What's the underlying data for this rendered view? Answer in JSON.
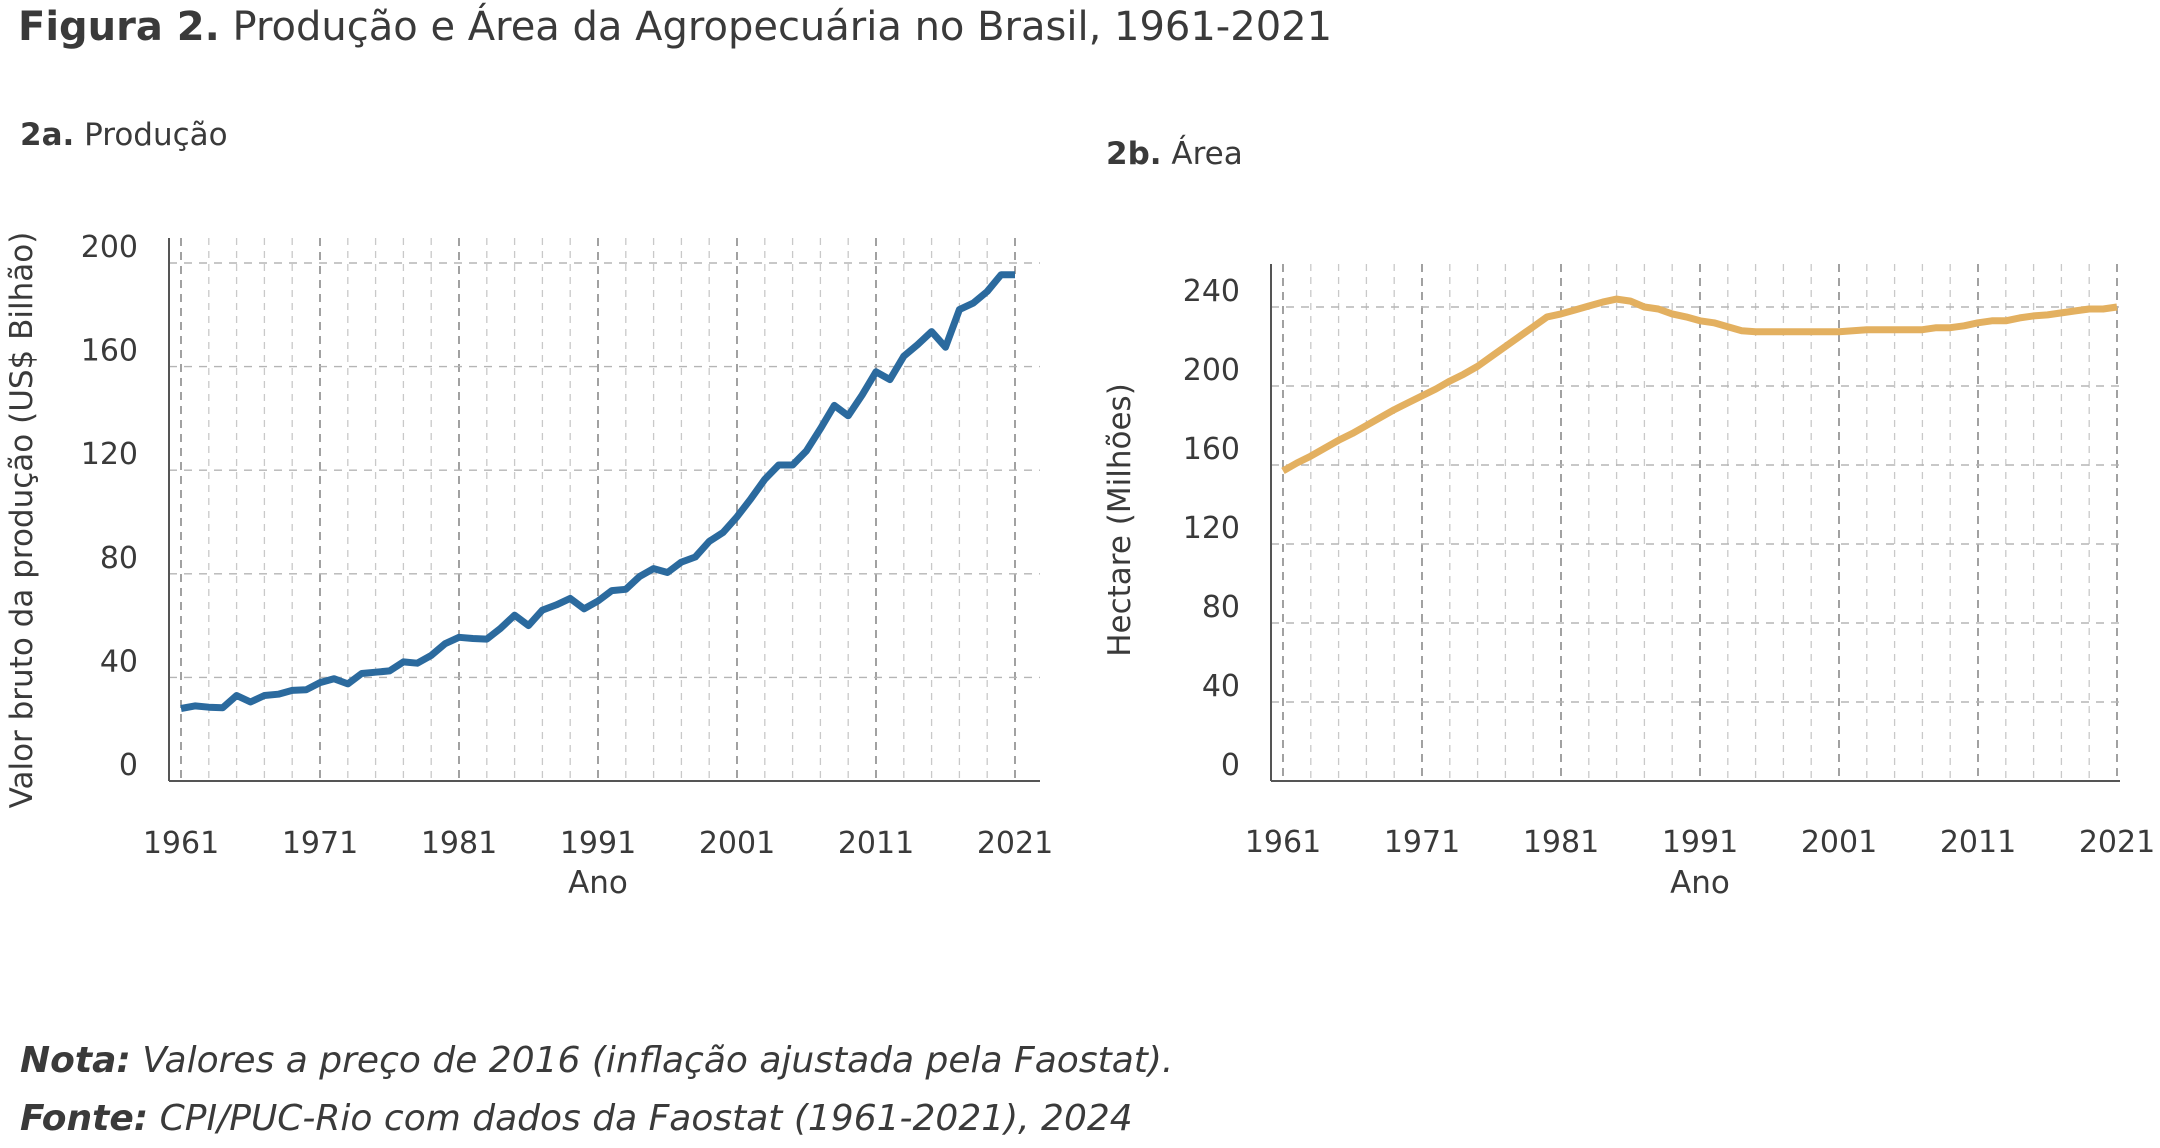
{
  "figure": {
    "title_bold": "Figura 2.",
    "title_rest": "Produção e Área da Agropecuária no Brasil, 1961-2021",
    "note_label": "Nota:",
    "note_text": "Valores a preço de 2016 (inflação ajustada pela Faostat).",
    "source_label": "Fonte:",
    "source_text": "CPI/PUC-Rio com dados da Faostat (1961-2021), 2024"
  },
  "chart_data": [
    {
      "id": "2a",
      "type": "line",
      "panel_bold": "2a.",
      "panel_title": "Produção",
      "xlabel": "Ano",
      "ylabel": "Valor bruto da produção (US$ Bilhão)",
      "xlim": [
        1961,
        2021
      ],
      "ylim": [
        0,
        200
      ],
      "xticks": [
        1961,
        1971,
        1981,
        1991,
        2001,
        2011,
        2021
      ],
      "yticks": [
        0,
        40,
        80,
        120,
        160,
        200
      ],
      "grid": true,
      "color": "#2b6a9e",
      "series": [
        {
          "x": [
            1961,
            1962,
            1963,
            1964,
            1965,
            1966,
            1967,
            1968,
            1969,
            1970,
            1971,
            1972,
            1973,
            1974,
            1975,
            1976,
            1977,
            1978,
            1979,
            1980,
            1981,
            1982,
            1983,
            1984,
            1985,
            1986,
            1987,
            1988,
            1989,
            1990,
            1991,
            1992,
            1993,
            1994,
            1995,
            1996,
            1997,
            1998,
            1999,
            2000,
            2001,
            2002,
            2003,
            2004,
            2005,
            2006,
            2007,
            2008,
            2009,
            2010,
            2011,
            2012,
            2013,
            2014,
            2015,
            2016,
            2017,
            2018,
            2019,
            2020,
            2021
          ],
          "values": [
            28,
            29,
            28.5,
            28.3,
            33,
            30.5,
            33,
            33.5,
            35,
            35.2,
            38,
            39.5,
            37.5,
            41.5,
            42,
            42.5,
            46,
            45.5,
            48.5,
            53,
            55.5,
            55,
            54.8,
            59,
            64,
            60,
            66,
            68,
            70.5,
            66.5,
            69.5,
            73.5,
            74,
            79,
            82,
            80.5,
            84.5,
            86.5,
            92.5,
            96,
            102,
            109,
            116.5,
            122,
            122,
            127.5,
            136,
            145,
            141,
            149,
            158,
            155,
            164,
            168.5,
            173.5,
            167.5,
            182,
            184.5,
            189,
            195.5,
            195.5
          ]
        }
      ]
    },
    {
      "id": "2b",
      "type": "line",
      "panel_bold": "2b.",
      "panel_title": "Área",
      "xlabel": "Ano",
      "ylabel": "Hectare (Milhões)",
      "xlim": [
        1961,
        2021
      ],
      "ylim": [
        0,
        250
      ],
      "xticks": [
        1961,
        1971,
        1981,
        1991,
        2001,
        2011,
        2021
      ],
      "yticks": [
        0,
        40,
        80,
        120,
        160,
        200,
        240
      ],
      "grid": true,
      "color": "#e3b060",
      "series": [
        {
          "x": [
            1961,
            1962,
            1963,
            1964,
            1965,
            1966,
            1967,
            1968,
            1969,
            1970,
            1971,
            1972,
            1973,
            1974,
            1975,
            1976,
            1977,
            1978,
            1979,
            1980,
            1981,
            1982,
            1983,
            1984,
            1985,
            1986,
            1987,
            1988,
            1989,
            1990,
            1991,
            1992,
            1993,
            1994,
            1995,
            1996,
            1997,
            1998,
            1999,
            2000,
            2001,
            2002,
            2003,
            2004,
            2005,
            2006,
            2007,
            2008,
            2009,
            2010,
            2011,
            2012,
            2013,
            2014,
            2015,
            2016,
            2017,
            2018,
            2019,
            2020,
            2021
          ],
          "values": [
            157,
            161,
            164.5,
            168.5,
            172.5,
            176,
            180,
            184,
            188,
            191.5,
            195,
            198.5,
            202.5,
            206,
            210,
            215,
            220,
            225,
            230,
            235,
            236.5,
            238.5,
            240.5,
            242.5,
            244,
            243,
            240,
            239,
            236.5,
            235,
            233,
            232,
            230,
            228,
            227.5,
            227.5,
            227.5,
            227.5,
            227.5,
            227.5,
            227.5,
            228,
            228.5,
            228.5,
            228.5,
            228.5,
            228.5,
            229.5,
            229.5,
            230.5,
            232,
            233,
            233,
            234.5,
            235.5,
            236,
            237,
            238,
            239,
            239,
            240
          ]
        }
      ]
    }
  ]
}
